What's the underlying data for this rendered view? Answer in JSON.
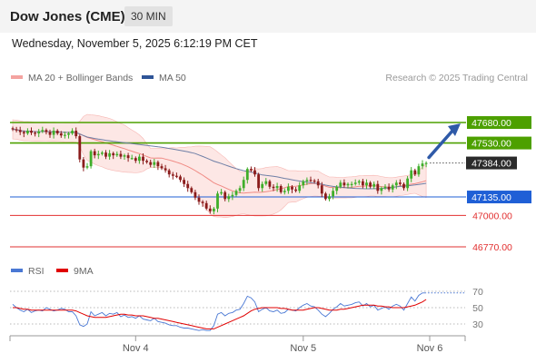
{
  "header": {
    "title": "Dow Jones (CME)",
    "timeframe": "30 MIN"
  },
  "date_text": "Wednesday, November 5, 2025 6:12:19 PM CET",
  "legend": {
    "ma_bb": {
      "label": "MA 20 + Bollinger Bands",
      "color": "#f4a3a0"
    },
    "ma50": {
      "label": "MA 50",
      "color": "#2f5597"
    },
    "rsi": {
      "label": "RSI",
      "color": "#4a78d4"
    },
    "ma9": {
      "label": "9MA",
      "color": "#e00000"
    }
  },
  "research": "Research © 2025 Trading Central",
  "chart_data": [
    {
      "type": "candlestick",
      "x_ticks": [
        "Nov 4",
        "Nov 5",
        "Nov 6"
      ],
      "price_range": [
        46700,
        47800
      ],
      "levels": [
        {
          "value": 47680.0,
          "label": "47680.00",
          "kind": "resistance",
          "color": "#4da000"
        },
        {
          "value": 47530.0,
          "label": "47530.00",
          "kind": "resistance",
          "color": "#4da000"
        },
        {
          "value": 47384.0,
          "label": "47384.00",
          "kind": "last",
          "color": "#2b2b2b"
        },
        {
          "value": 47135.0,
          "label": "47135.00",
          "kind": "pivot",
          "color": "#1f5fd6"
        },
        {
          "value": 47000.0,
          "label": "47000.00",
          "kind": "support",
          "color": "#e23030"
        },
        {
          "value": 46770.0,
          "label": "46770.00",
          "kind": "support",
          "color": "#e23030"
        }
      ],
      "closes": [
        47630,
        47625,
        47610,
        47600,
        47620,
        47605,
        47600,
        47615,
        47625,
        47610,
        47590,
        47620,
        47600,
        47585,
        47590,
        47600,
        47620,
        47580,
        47410,
        47350,
        47360,
        47470,
        47440,
        47450,
        47460,
        47430,
        47455,
        47440,
        47450,
        47430,
        47440,
        47420,
        47420,
        47400,
        47430,
        47400,
        47390,
        47370,
        47390,
        47360,
        47345,
        47330,
        47300,
        47290,
        47285,
        47260,
        47230,
        47200,
        47170,
        47130,
        47100,
        47090,
        47050,
        47030,
        47050,
        47160,
        47170,
        47120,
        47140,
        47150,
        47180,
        47200,
        47260,
        47340,
        47330,
        47300,
        47200,
        47230,
        47250,
        47210,
        47200,
        47215,
        47170,
        47180,
        47210,
        47190,
        47180,
        47220,
        47250,
        47260,
        47255,
        47250,
        47220,
        47160,
        47120,
        47140,
        47180,
        47210,
        47240,
        47220,
        47230,
        47230,
        47240,
        47250,
        47220,
        47240,
        47210,
        47230,
        47180,
        47200,
        47210,
        47190,
        47220,
        47240,
        47230,
        47200,
        47270,
        47330,
        47300,
        47360,
        47380,
        47384
      ],
      "forecast_arrow": {
        "from": 47384,
        "to": 47680
      }
    },
    {
      "type": "line",
      "title": "RSI",
      "y_ticks": [
        70,
        50,
        30
      ],
      "y_range": [
        20,
        80
      ],
      "series": [
        {
          "name": "RSI",
          "values": [
            54,
            50,
            47,
            45,
            48,
            44,
            46,
            47,
            46,
            50,
            48,
            46,
            47,
            49,
            48,
            45,
            45,
            40,
            29,
            27,
            30,
            45,
            40,
            42,
            44,
            40,
            43,
            42,
            44,
            39,
            41,
            38,
            39,
            37,
            40,
            36,
            35,
            34,
            37,
            33,
            32,
            31,
            29,
            28,
            28,
            26,
            25,
            25,
            24,
            23,
            22,
            23,
            22,
            22,
            28,
            42,
            44,
            40,
            43,
            44,
            47,
            48,
            55,
            64,
            62,
            57,
            45,
            48,
            50,
            46,
            45,
            47,
            43,
            44,
            48,
            47,
            46,
            50,
            53,
            55,
            52,
            51,
            47,
            42,
            39,
            43,
            48,
            51,
            55,
            52,
            53,
            54,
            56,
            57,
            52,
            55,
            51,
            53,
            47,
            49,
            51,
            48,
            52,
            54,
            52,
            47,
            55,
            63,
            58,
            65,
            68,
            68
          ]
        },
        {
          "name": "9MA",
          "values": [
            50,
            50,
            49,
            48,
            48,
            47,
            47,
            47,
            47,
            47,
            47,
            47,
            47,
            47,
            47,
            47,
            47,
            46,
            44,
            42,
            40,
            39,
            38,
            38,
            38,
            38,
            39,
            40,
            41,
            42,
            42,
            41,
            41,
            40,
            40,
            40,
            39,
            38,
            37,
            37,
            36,
            35,
            34,
            33,
            32,
            31,
            30,
            29,
            28,
            27,
            26,
            25,
            24,
            24,
            24,
            26,
            28,
            30,
            32,
            34,
            36,
            38,
            40,
            43,
            46,
            48,
            49,
            50,
            50,
            50,
            50,
            50,
            49,
            49,
            48,
            47,
            47,
            47,
            47,
            48,
            49,
            50,
            50,
            49,
            48,
            47,
            47,
            47,
            48,
            48,
            49,
            50,
            51,
            52,
            53,
            53,
            53,
            53,
            52,
            52,
            51,
            51,
            50,
            50,
            50,
            50,
            51,
            52,
            53,
            55,
            57,
            60
          ]
        }
      ]
    }
  ]
}
